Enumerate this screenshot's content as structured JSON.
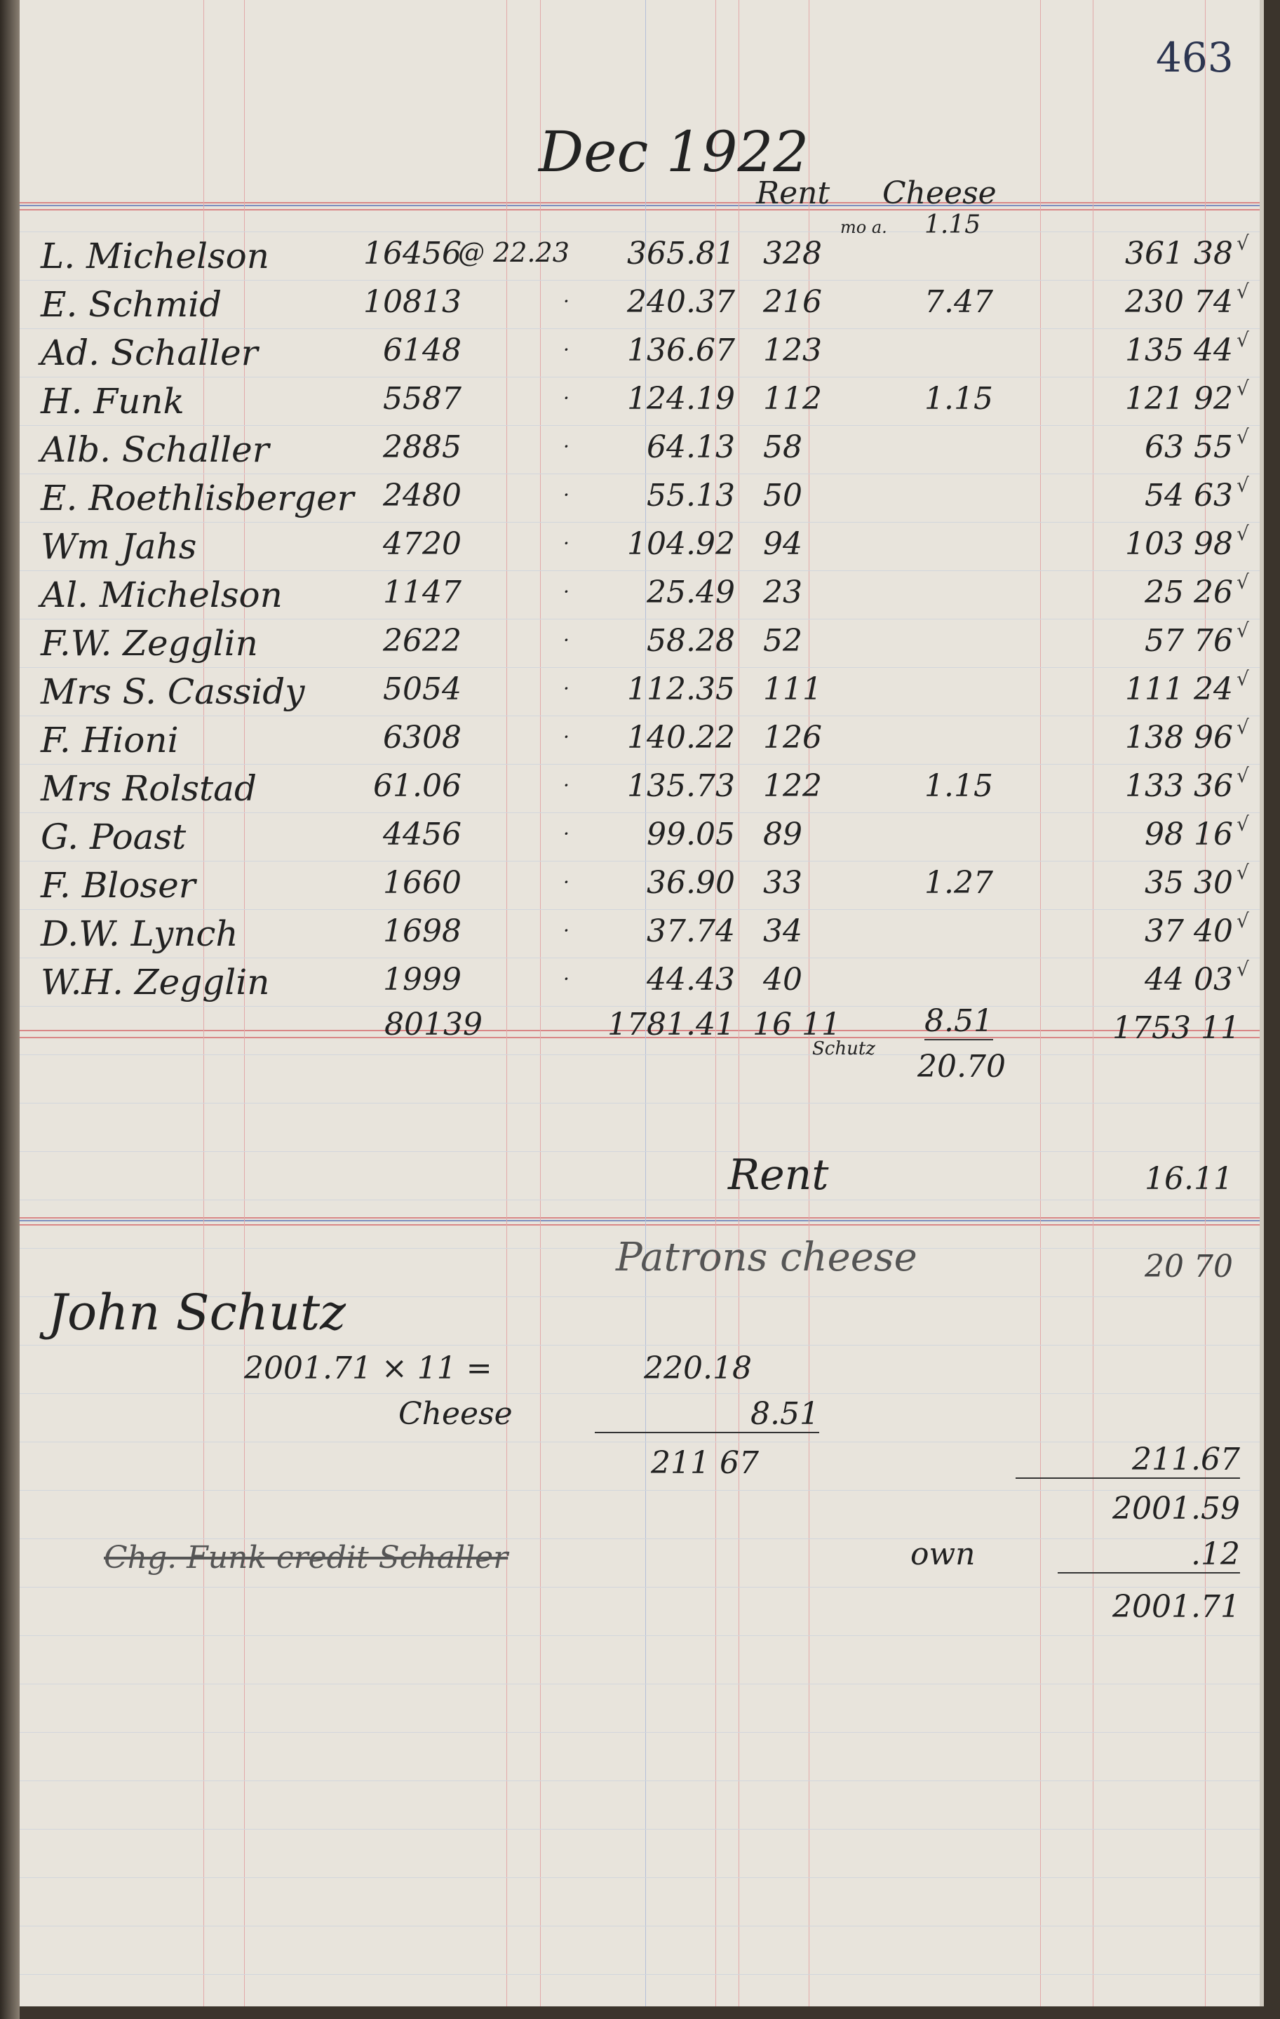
{
  "page_number": "463",
  "heading": "Dec 1922",
  "column_headers": {
    "rent": "Rent",
    "cheese": "Cheese",
    "cheese_note_prefix": "mo a.",
    "cheese_note_value": "1.15"
  },
  "rate": "@ 22.23",
  "rows": [
    {
      "name": "L. Michelson",
      "lbs": "16456",
      "amount": "365.81",
      "rent": "328",
      "cheese": "",
      "total": "361 38"
    },
    {
      "name": "E. Schmid",
      "lbs": "10813",
      "amount": "240.37",
      "rent": "216",
      "cheese": "7.47",
      "total": "230 74"
    },
    {
      "name": "Ad. Schaller",
      "lbs": "6148",
      "amount": "136.67",
      "rent": "123",
      "cheese": "",
      "total": "135 44"
    },
    {
      "name": "H. Funk",
      "lbs": "5587",
      "amount": "124.19",
      "rent": "112",
      "cheese": "1.15",
      "total": "121 92"
    },
    {
      "name": "Alb. Schaller",
      "lbs": "2885",
      "amount": "64.13",
      "rent": "58",
      "cheese": "",
      "total": "63 55"
    },
    {
      "name": "E. Roethlisberger",
      "lbs": "2480",
      "amount": "55.13",
      "rent": "50",
      "cheese": "",
      "total": "54 63"
    },
    {
      "name": "Wm Jahs",
      "lbs": "4720",
      "amount": "104.92",
      "rent": "94",
      "cheese": "",
      "total": "103 98"
    },
    {
      "name": "Al. Michelson",
      "lbs": "1147",
      "amount": "25.49",
      "rent": "23",
      "cheese": "",
      "total": "25 26"
    },
    {
      "name": "F.W. Zegglin",
      "lbs": "2622",
      "amount": "58.28",
      "rent": "52",
      "cheese": "",
      "total": "57 76"
    },
    {
      "name": "Mrs S. Cassidy",
      "lbs": "5054",
      "amount": "112.35",
      "rent": "111",
      "cheese": "",
      "total": "111 24"
    },
    {
      "name": "F. Hioni",
      "lbs": "6308",
      "amount": "140.22",
      "rent": "126",
      "cheese": "",
      "total": "138 96"
    },
    {
      "name": "Mrs Rolstad",
      "lbs": "61.06",
      "amount": "135.73",
      "rent": "122",
      "cheese": "1.15",
      "total": "133 36"
    },
    {
      "name": "G. Poast",
      "lbs": "4456",
      "amount": "99.05",
      "rent": "89",
      "cheese": "",
      "total": "98 16"
    },
    {
      "name": "F. Bloser",
      "lbs": "1660",
      "amount": "36.90",
      "rent": "33",
      "cheese": "1.27",
      "total": "35 30"
    },
    {
      "name": "D.W. Lynch",
      "lbs": "1698",
      "amount": "37.74",
      "rent": "34",
      "cheese": "",
      "total": "37 40"
    },
    {
      "name": "W.H. Zegglin",
      "lbs": "1999",
      "amount": "44.43",
      "rent": "40",
      "cheese": "",
      "total": "44 03"
    }
  ],
  "totals": {
    "lbs": "80139",
    "amount": "1781.41",
    "rent": "16 11",
    "cheese": "8.51",
    "cheese_note": "Schutz",
    "cheese_total": "20.70",
    "total": "1753 11"
  },
  "summary": {
    "rent_label": "Rent",
    "rent_value": "16.11",
    "cheese_label": "Patrons cheese",
    "cheese_value": "20 70",
    "person": "John Schutz",
    "calc_line": "2001.71 × 11 =",
    "calc_result": "220.18",
    "cheese_deduct_label": "Cheese",
    "cheese_deduct": "8.51",
    "net": "211 67",
    "right_net": "211.67",
    "right_sum": "2001.59",
    "own_label": "own",
    "own_value": ".12",
    "grand_total": "2001.71",
    "struck_note": "Chg. Funk credit Schaller"
  }
}
